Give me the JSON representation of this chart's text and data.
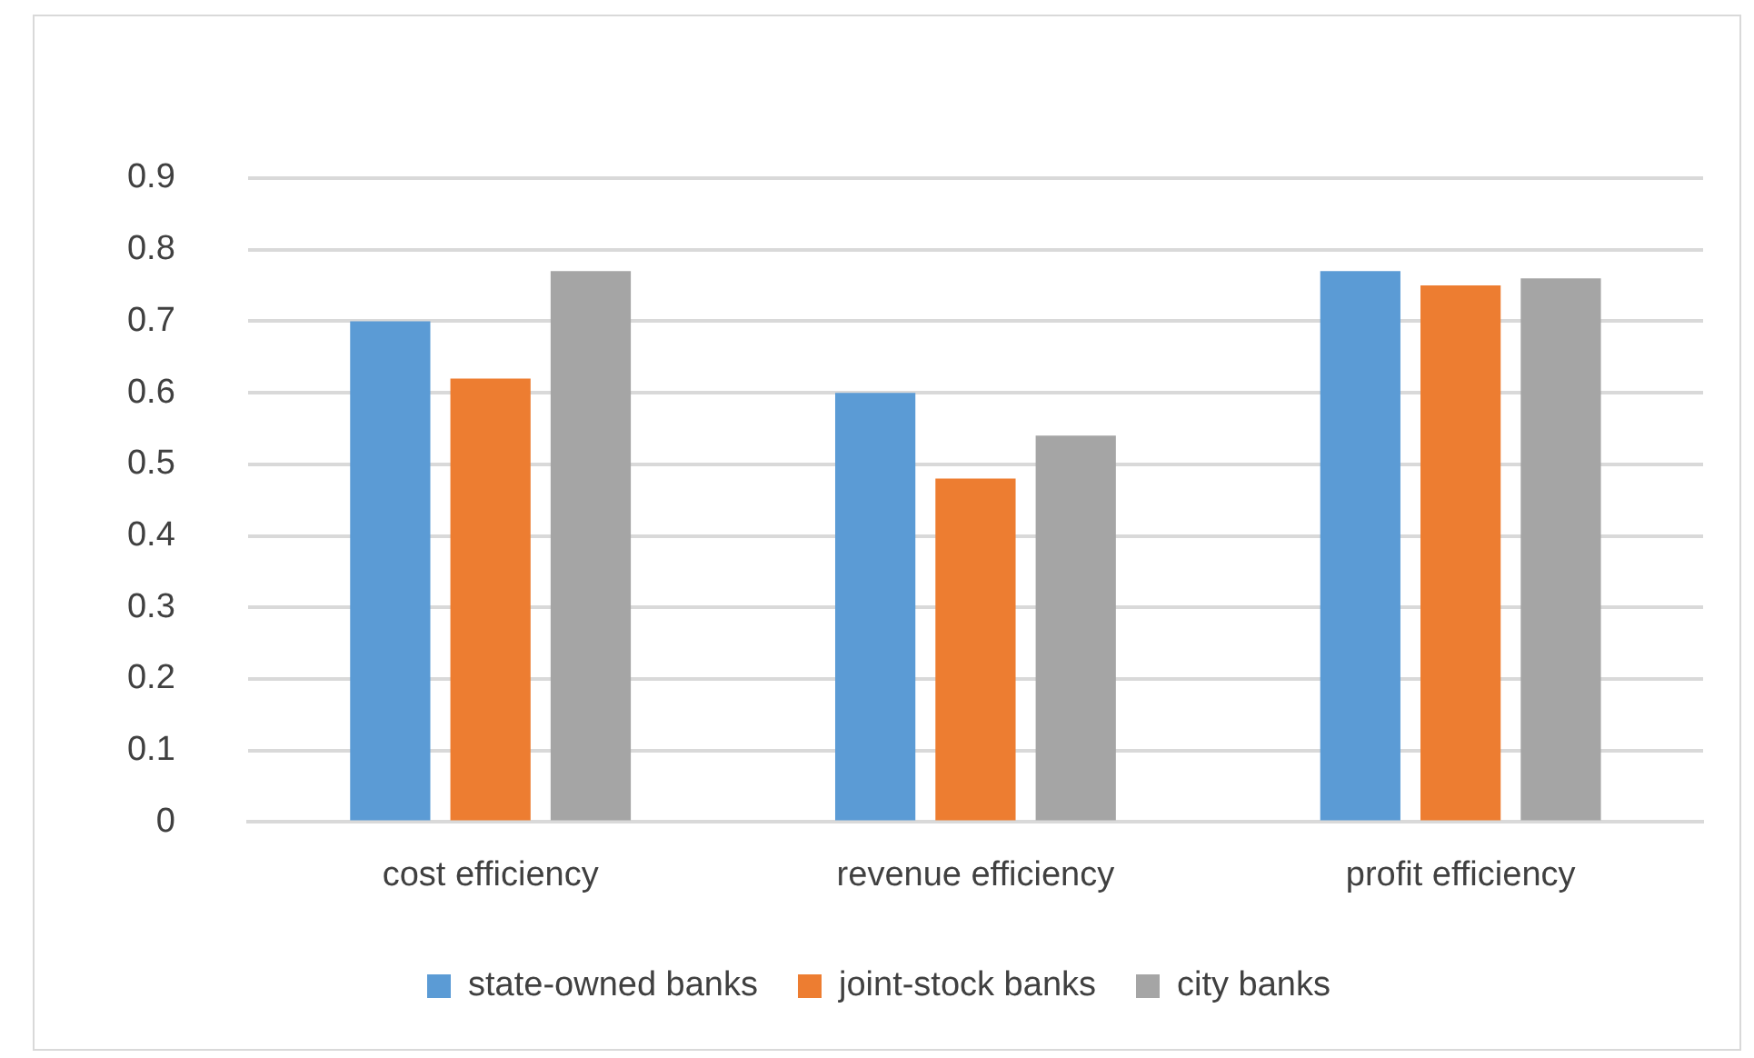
{
  "chart_data": {
    "type": "bar",
    "categories": [
      "cost efficiency",
      "revenue efficiency",
      "profit efficiency"
    ],
    "series": [
      {
        "name": "state-owned banks",
        "color": "#5b9bd5",
        "values": [
          0.7,
          0.6,
          0.77
        ]
      },
      {
        "name": "joint-stock banks",
        "color": "#ed7d31",
        "values": [
          0.62,
          0.48,
          0.75
        ]
      },
      {
        "name": "city banks",
        "color": "#a5a5a5",
        "values": [
          0.77,
          0.54,
          0.76
        ]
      }
    ],
    "ylim": [
      0,
      0.9
    ],
    "yticks": [
      0,
      0.1,
      0.2,
      0.3,
      0.4,
      0.5,
      0.6,
      0.7,
      0.8,
      0.9
    ],
    "grid": "y",
    "legend": "bottom"
  }
}
